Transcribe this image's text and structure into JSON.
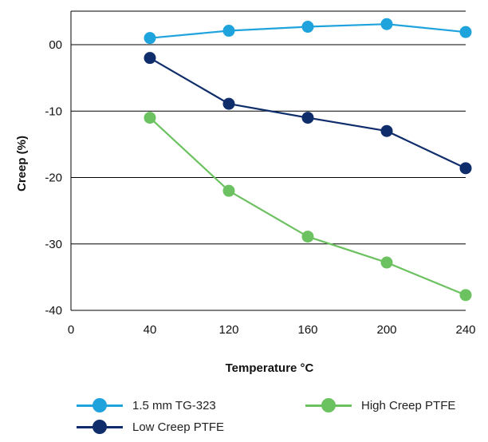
{
  "chart_data": {
    "type": "line",
    "title": "",
    "xlabel": "Temperature °C",
    "ylabel": "Creep (%)",
    "x_ticks": [
      "0",
      "40",
      "120",
      "160",
      "200",
      "240"
    ],
    "y_ticks": [
      "00",
      "-10",
      "-20",
      "-30",
      "-40"
    ],
    "ylim": [
      -40,
      5
    ],
    "grid": "horizontal",
    "legend_placement": "bottom",
    "x": [
      "40",
      "120",
      "160",
      "200",
      "240"
    ],
    "series": [
      {
        "name": "1.5 mm TG-323",
        "color": "#1ea3dc",
        "values": [
          1.0,
          2.1,
          2.7,
          3.1,
          1.9
        ]
      },
      {
        "name": "Low Creep PTFE",
        "color": "#0f2d6b",
        "values": [
          -2.0,
          -8.9,
          -11.0,
          -13.0,
          -18.6
        ]
      },
      {
        "name": "High Creep PTFE",
        "color": "#6cc160",
        "values": [
          -11.0,
          -22.0,
          -28.9,
          -32.8,
          -37.7
        ]
      }
    ]
  }
}
